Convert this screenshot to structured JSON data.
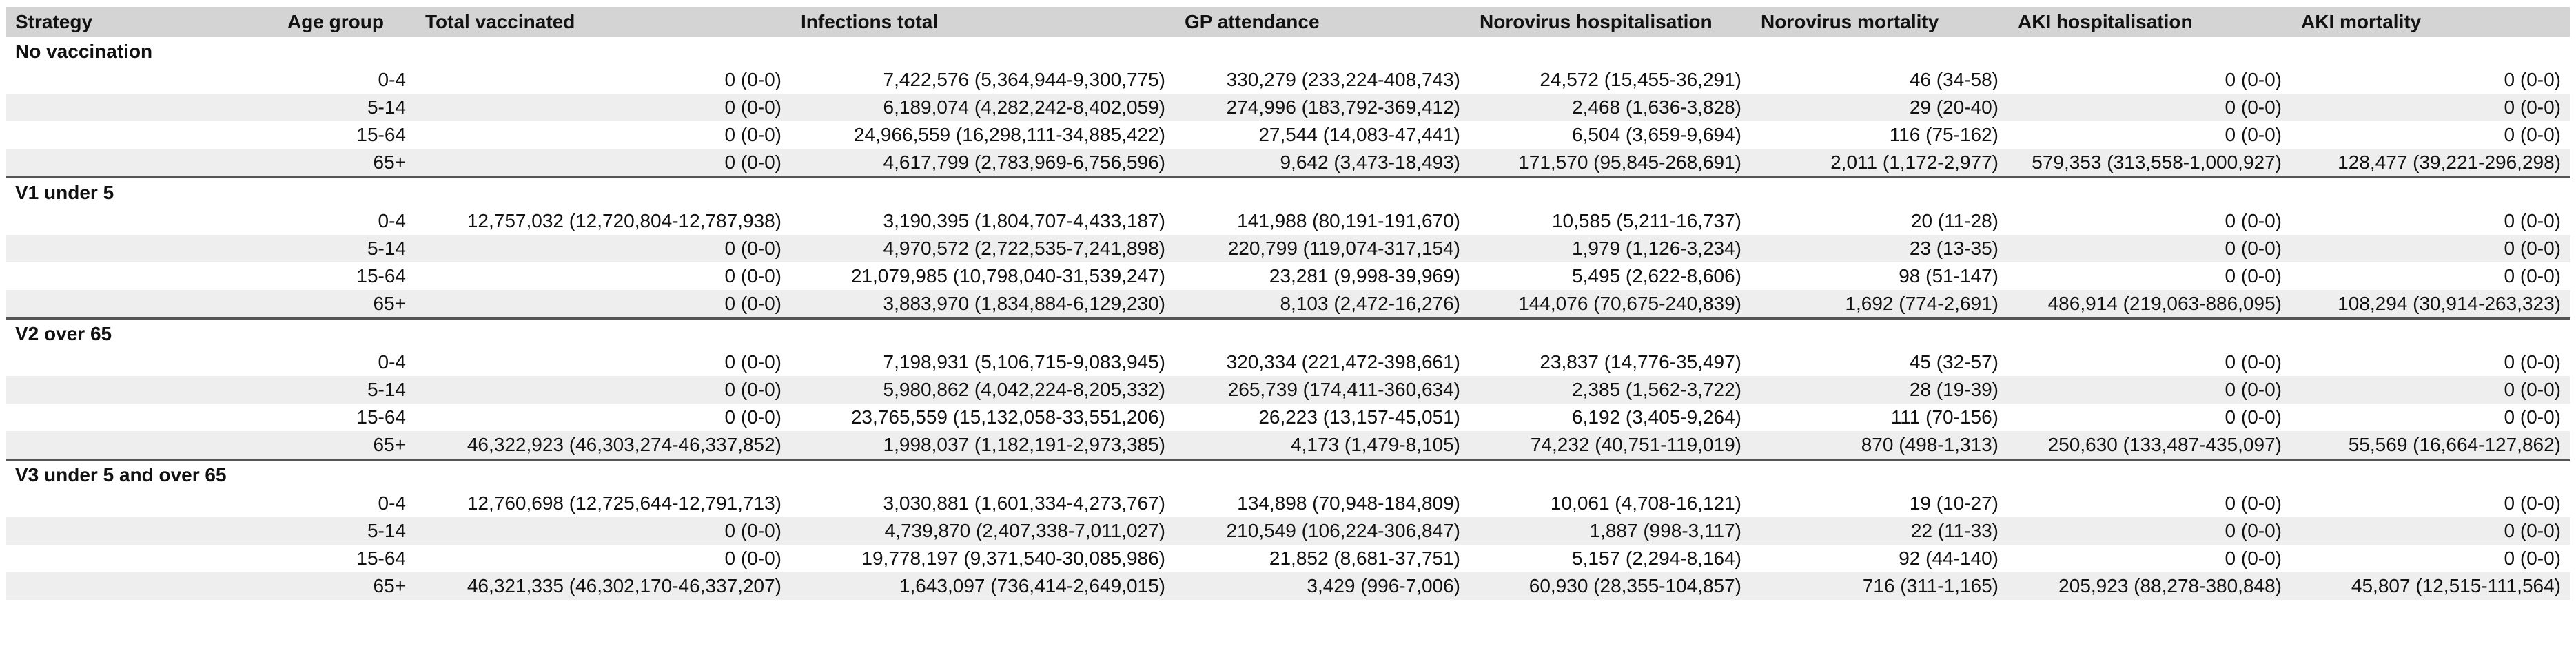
{
  "headers": [
    "Strategy",
    "Age group",
    "Total vaccinated",
    "Infections total",
    "GP attendance",
    "Norovirus hospitalisation",
    "Norovirus mortality",
    "AKI hospitalisation",
    "AKI mortality"
  ],
  "groups": [
    {
      "name": "No vaccination",
      "rows": [
        [
          "0-4",
          "0 (0-0)",
          "7,422,576 (5,364,944-9,300,775)",
          "330,279 (233,224-408,743)",
          "24,572 (15,455-36,291)",
          "46 (34-58)",
          "0 (0-0)",
          "0 (0-0)"
        ],
        [
          "5-14",
          "0 (0-0)",
          "6,189,074 (4,282,242-8,402,059)",
          "274,996 (183,792-369,412)",
          "2,468 (1,636-3,828)",
          "29 (20-40)",
          "0 (0-0)",
          "0 (0-0)"
        ],
        [
          "15-64",
          "0 (0-0)",
          "24,966,559 (16,298,111-34,885,422)",
          "27,544 (14,083-47,441)",
          "6,504 (3,659-9,694)",
          "116 (75-162)",
          "0 (0-0)",
          "0 (0-0)"
        ],
        [
          "65+",
          "0 (0-0)",
          "4,617,799 (2,783,969-6,756,596)",
          "9,642 (3,473-18,493)",
          "171,570 (95,845-268,691)",
          "2,011 (1,172-2,977)",
          "579,353 (313,558-1,000,927)",
          "128,477 (39,221-296,298)"
        ]
      ]
    },
    {
      "name": "V1 under 5",
      "rows": [
        [
          "0-4",
          "12,757,032 (12,720,804-12,787,938)",
          "3,190,395 (1,804,707-4,433,187)",
          "141,988 (80,191-191,670)",
          "10,585 (5,211-16,737)",
          "20 (11-28)",
          "0 (0-0)",
          "0 (0-0)"
        ],
        [
          "5-14",
          "0 (0-0)",
          "4,970,572 (2,722,535-7,241,898)",
          "220,799 (119,074-317,154)",
          "1,979 (1,126-3,234)",
          "23 (13-35)",
          "0 (0-0)",
          "0 (0-0)"
        ],
        [
          "15-64",
          "0 (0-0)",
          "21,079,985 (10,798,040-31,539,247)",
          "23,281 (9,998-39,969)",
          "5,495 (2,622-8,606)",
          "98 (51-147)",
          "0 (0-0)",
          "0 (0-0)"
        ],
        [
          "65+",
          "0 (0-0)",
          "3,883,970 (1,834,884-6,129,230)",
          "8,103 (2,472-16,276)",
          "144,076 (70,675-240,839)",
          "1,692 (774-2,691)",
          "486,914 (219,063-886,095)",
          "108,294 (30,914-263,323)"
        ]
      ]
    },
    {
      "name": "V2 over 65",
      "rows": [
        [
          "0-4",
          "0 (0-0)",
          "7,198,931 (5,106,715-9,083,945)",
          "320,334 (221,472-398,661)",
          "23,837 (14,776-35,497)",
          "45 (32-57)",
          "0 (0-0)",
          "0 (0-0)"
        ],
        [
          "5-14",
          "0 (0-0)",
          "5,980,862 (4,042,224-8,205,332)",
          "265,739 (174,411-360,634)",
          "2,385 (1,562-3,722)",
          "28 (19-39)",
          "0 (0-0)",
          "0 (0-0)"
        ],
        [
          "15-64",
          "0 (0-0)",
          "23,765,559 (15,132,058-33,551,206)",
          "26,223 (13,157-45,051)",
          "6,192 (3,405-9,264)",
          "111 (70-156)",
          "0 (0-0)",
          "0 (0-0)"
        ],
        [
          "65+",
          "46,322,923 (46,303,274-46,337,852)",
          "1,998,037 (1,182,191-2,973,385)",
          "4,173 (1,479-8,105)",
          "74,232 (40,751-119,019)",
          "870 (498-1,313)",
          "250,630 (133,487-435,097)",
          "55,569 (16,664-127,862)"
        ]
      ]
    },
    {
      "name": "V3 under 5 and over 65",
      "rows": [
        [
          "0-4",
          "12,760,698 (12,725,644-12,791,713)",
          "3,030,881 (1,601,334-4,273,767)",
          "134,898 (70,948-184,809)",
          "10,061 (4,708-16,121)",
          "19 (10-27)",
          "0 (0-0)",
          "0 (0-0)"
        ],
        [
          "5-14",
          "0 (0-0)",
          "4,739,870 (2,407,338-7,011,027)",
          "210,549 (106,224-306,847)",
          "1,887 (998-3,117)",
          "22 (11-33)",
          "0 (0-0)",
          "0 (0-0)"
        ],
        [
          "15-64",
          "0 (0-0)",
          "19,778,197 (9,371,540-30,085,986)",
          "21,852 (8,681-37,751)",
          "5,157 (2,294-8,164)",
          "92 (44-140)",
          "0 (0-0)",
          "0 (0-0)"
        ],
        [
          "65+",
          "46,321,335 (46,302,170-46,337,207)",
          "1,643,097 (736,414-2,649,015)",
          "3,429 (996-7,006)",
          "60,930 (28,355-104,857)",
          "716 (311-1,165)",
          "205,923 (88,278-380,848)",
          "45,807 (12,515-111,564)"
        ]
      ]
    }
  ]
}
